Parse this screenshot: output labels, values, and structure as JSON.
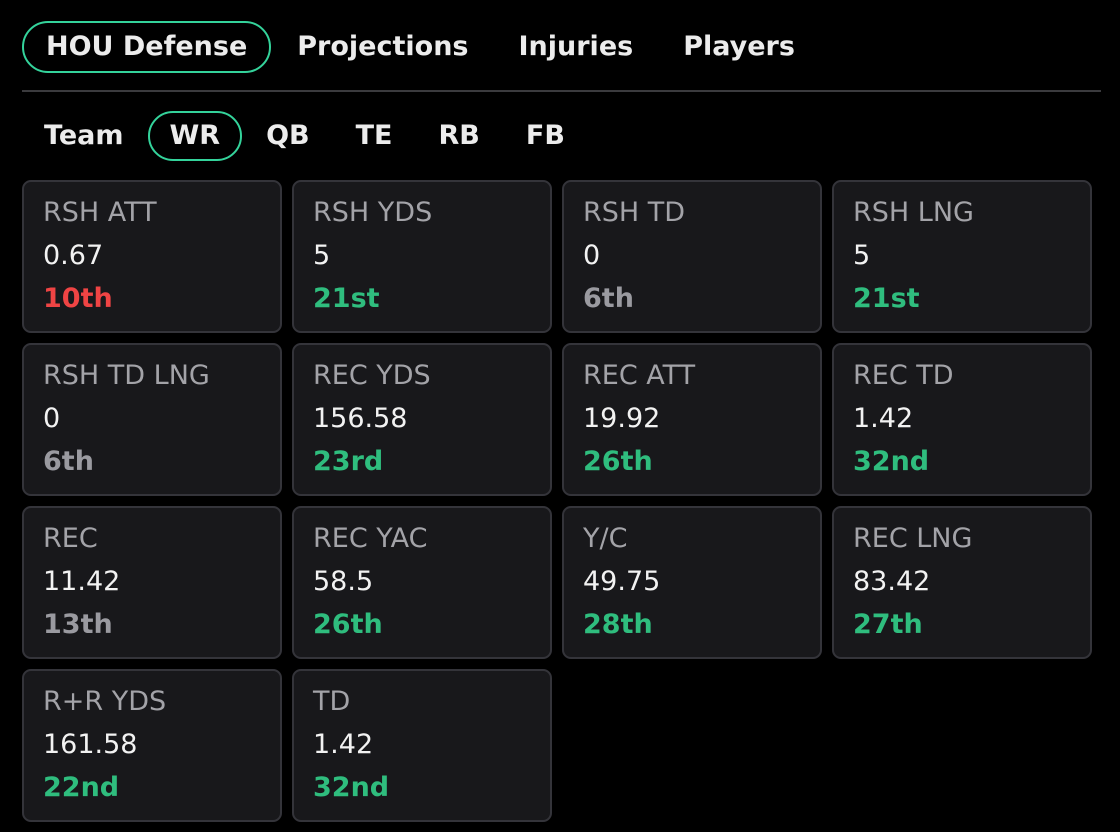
{
  "colors": {
    "accent": "#34d39b",
    "rank_good": "#2fbd7e",
    "rank_bad": "#ef4444",
    "rank_neutral": "#9a9aa0"
  },
  "top_tabs": [
    {
      "label": "HOU Defense",
      "active": true
    },
    {
      "label": "Projections",
      "active": false
    },
    {
      "label": "Injuries",
      "active": false
    },
    {
      "label": "Players",
      "active": false
    }
  ],
  "position_tabs": [
    {
      "label": "Team",
      "active": false
    },
    {
      "label": "WR",
      "active": true
    },
    {
      "label": "QB",
      "active": false
    },
    {
      "label": "TE",
      "active": false
    },
    {
      "label": "RB",
      "active": false
    },
    {
      "label": "FB",
      "active": false
    }
  ],
  "stats": [
    {
      "label": "RSH ATT",
      "value": "0.67",
      "rank": "10th",
      "rank_tone": "bad"
    },
    {
      "label": "RSH YDS",
      "value": "5",
      "rank": "21st",
      "rank_tone": "good"
    },
    {
      "label": "RSH TD",
      "value": "0",
      "rank": "6th",
      "rank_tone": "neutral"
    },
    {
      "label": "RSH LNG",
      "value": "5",
      "rank": "21st",
      "rank_tone": "good"
    },
    {
      "label": "RSH TD LNG",
      "value": "0",
      "rank": "6th",
      "rank_tone": "neutral"
    },
    {
      "label": "REC YDS",
      "value": "156.58",
      "rank": "23rd",
      "rank_tone": "good"
    },
    {
      "label": "REC ATT",
      "value": "19.92",
      "rank": "26th",
      "rank_tone": "good"
    },
    {
      "label": "REC TD",
      "value": "1.42",
      "rank": "32nd",
      "rank_tone": "good"
    },
    {
      "label": "REC",
      "value": "11.42",
      "rank": "13th",
      "rank_tone": "neutral"
    },
    {
      "label": "REC YAC",
      "value": "58.5",
      "rank": "26th",
      "rank_tone": "good"
    },
    {
      "label": "Y/C",
      "value": "49.75",
      "rank": "28th",
      "rank_tone": "good"
    },
    {
      "label": "REC LNG",
      "value": "83.42",
      "rank": "27th",
      "rank_tone": "good"
    },
    {
      "label": "R+R YDS",
      "value": "161.58",
      "rank": "22nd",
      "rank_tone": "good"
    },
    {
      "label": "TD",
      "value": "1.42",
      "rank": "32nd",
      "rank_tone": "good"
    }
  ]
}
